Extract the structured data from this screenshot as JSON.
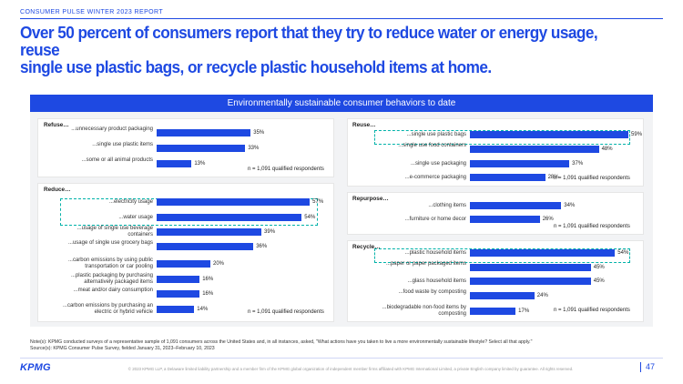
{
  "report_tag": "CONSUMER PULSE WINTER 2023 REPORT",
  "headline_line1": "Over 50 percent of consumers report that they try to reduce water or energy usage, reuse",
  "headline_line2": "single use plastic bags, or recycle plastic household items at home.",
  "banner": "Environmentally sustainable consumer behaviors to date",
  "n_note": "n = 1,091 qualified respondents",
  "footnote_notes": "Note(s):      KPMG conducted surveys of a representative sample of 1,091 consumers across the United States and, in all instances, asked, \"What actions have you taken to live a more environmentally sustainable lifestyle? Select all that apply.\"",
  "footnote_sources": "Source(s):   KPMG Consumer Pulse Survey, fielded January 31, 2023–February 10, 2023",
  "logo": "KPMG",
  "copyright": "© 2023 KPMG LLP, a Delaware limited liability partnership and a member firm of the KPMG global organization of independent member firms affiliated with KPMG International Limited, a private English company limited by guarantee. All rights reserved.",
  "page_number": "47",
  "colors": {
    "accent": "#1e49e2",
    "highlight": "#00b2a9"
  },
  "chart_data": [
    {
      "type": "bar",
      "title": "Refuse…",
      "categories": [
        "...unnecessary product packaging",
        "...single use plastic items",
        "...some or all animal products"
      ],
      "values": [
        35,
        33,
        13
      ],
      "value_labels": [
        "35%",
        "33%",
        "13%"
      ]
    },
    {
      "type": "bar",
      "title": "Reduce…",
      "categories": [
        "...electricity usage",
        "...water usage",
        "...usage of single use beverage containers",
        "...usage of single use grocery bags",
        "...carbon emissions by using public transportation or car pooling",
        "...plastic packaging by purchasing alternatively packaged items",
        "...meat and/or dairy consumption",
        "...carbon emissions by purchasing an electric or hybrid vehicle"
      ],
      "values": [
        57,
        54,
        39,
        36,
        20,
        16,
        16,
        14
      ],
      "value_labels": [
        "57%",
        "54%",
        "39%",
        "36%",
        "20%",
        "16%",
        "16%",
        "14%"
      ]
    },
    {
      "type": "bar",
      "title": "Reuse…",
      "categories": [
        "...single use plastic bags",
        "...single use food containers",
        "...single use packaging",
        "...e-commerce packaging"
      ],
      "values": [
        59,
        48,
        37,
        28
      ],
      "value_labels": [
        "59%",
        "48%",
        "37%",
        "28%"
      ]
    },
    {
      "type": "bar",
      "title": "Repurpose…",
      "categories": [
        "...clothing items",
        "...furniture or home decor"
      ],
      "values": [
        34,
        26
      ],
      "value_labels": [
        "34%",
        "26%"
      ]
    },
    {
      "type": "bar",
      "title": "Recycle…",
      "categories": [
        "...plastic household items",
        "...paper or paper packaged items",
        "...glass household items",
        "...food waste by composting",
        "...biodegradable non-food items by composting"
      ],
      "values": [
        54,
        45,
        45,
        24,
        17
      ],
      "value_labels": [
        "54%",
        "45%",
        "45%",
        "24%",
        "17%"
      ]
    }
  ]
}
